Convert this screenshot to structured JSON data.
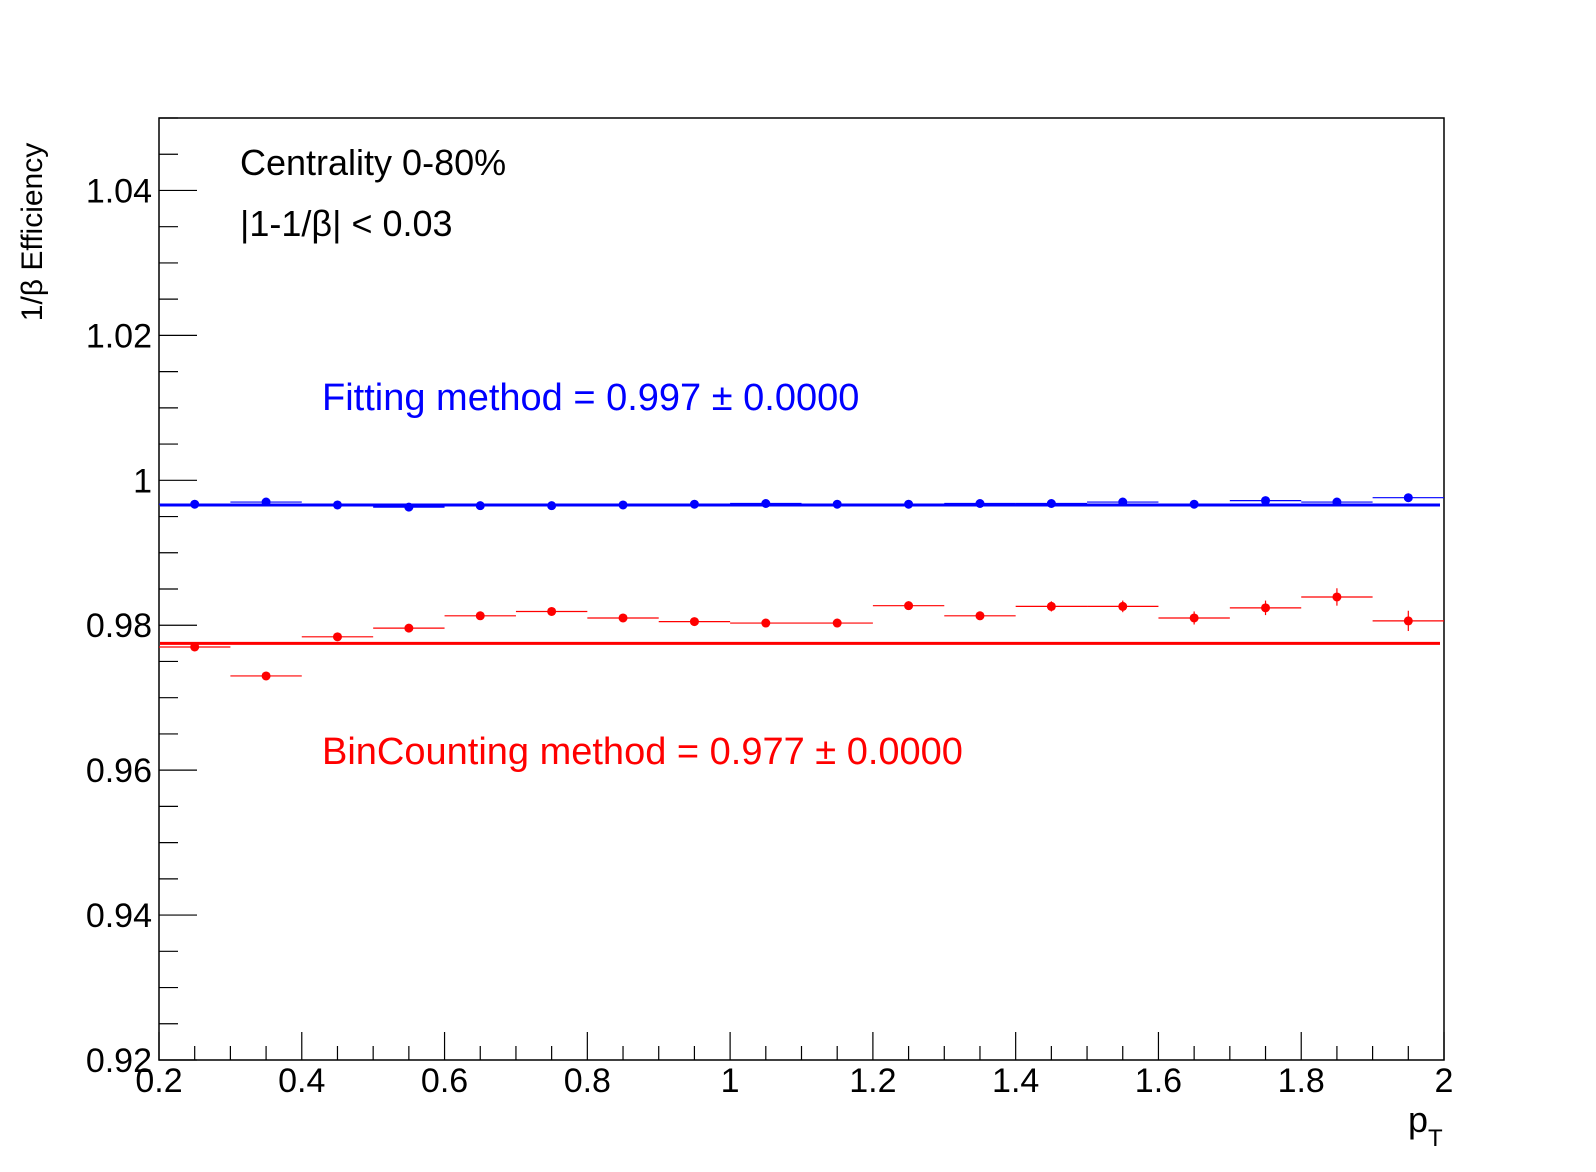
{
  "chart_data": {
    "type": "scatter",
    "xlabel": "p",
    "xlabel_sub": "T",
    "ylabel": "1/β Efficiency",
    "xlim": [
      0.2,
      2.0
    ],
    "ylim": [
      0.92,
      1.05
    ],
    "x_ticks": [
      "0.2",
      "0.4",
      "0.6",
      "0.8",
      "1",
      "1.2",
      "1.4",
      "1.6",
      "1.8",
      "2"
    ],
    "x_tick_values": [
      0.2,
      0.4,
      0.6,
      0.8,
      1.0,
      1.2,
      1.4,
      1.6,
      1.8,
      2.0
    ],
    "y_ticks": [
      "0.92",
      "0.94",
      "0.96",
      "0.98",
      "1",
      "1.02",
      "1.04"
    ],
    "y_tick_values": [
      0.92,
      0.94,
      0.96,
      0.98,
      1.0,
      1.02,
      1.04
    ],
    "grid": false,
    "annotations": {
      "centrality": "Centrality 0-80%",
      "cut": "|1-1/β| < 0.03",
      "fit_label": "Fitting method = 0.997  ± 0.0000",
      "bin_label": "BinCounting method = 0.977  ± 0.0000"
    },
    "bin_width": 0.1,
    "series": [
      {
        "color": "#0000ff",
        "x": [
          0.25,
          0.35,
          0.45,
          0.55,
          0.65,
          0.75,
          0.85,
          0.95,
          1.05,
          1.15,
          1.25,
          1.35,
          1.45,
          1.55,
          1.65,
          1.75,
          1.85,
          1.95
        ],
        "y": [
          0.9967,
          0.997,
          0.9966,
          0.9963,
          0.9965,
          0.9965,
          0.9966,
          0.9967,
          0.9968,
          0.9967,
          0.9967,
          0.9968,
          0.9968,
          0.997,
          0.9967,
          0.9972,
          0.997,
          0.9976
        ],
        "yerr": [
          0.0001,
          0.0001,
          0.0001,
          0.0001,
          0.0001,
          0.0001,
          0.0001,
          0.0001,
          0.0001,
          0.0001,
          0.0001,
          0.0001,
          0.0001,
          0.0002,
          0.0002,
          0.0002,
          0.0002,
          0.0003
        ],
        "fit": 0.9966
      },
      {
        "color": "#ff0000",
        "x": [
          0.25,
          0.35,
          0.45,
          0.55,
          0.65,
          0.75,
          0.85,
          0.95,
          1.05,
          1.15,
          1.25,
          1.35,
          1.45,
          1.55,
          1.65,
          1.75,
          1.85,
          1.95
        ],
        "y": [
          0.977,
          0.973,
          0.9784,
          0.9796,
          0.9813,
          0.9819,
          0.981,
          0.9805,
          0.9803,
          0.9803,
          0.9827,
          0.9813,
          0.9826,
          0.9826,
          0.981,
          0.9824,
          0.9839,
          0.9806
        ],
        "yerr": [
          0.0003,
          0.0003,
          0.0004,
          0.0004,
          0.0004,
          0.0004,
          0.0005,
          0.0005,
          0.0005,
          0.0006,
          0.0006,
          0.0006,
          0.0007,
          0.0008,
          0.0009,
          0.001,
          0.0012,
          0.0014
        ],
        "fit": 0.9775
      }
    ]
  }
}
